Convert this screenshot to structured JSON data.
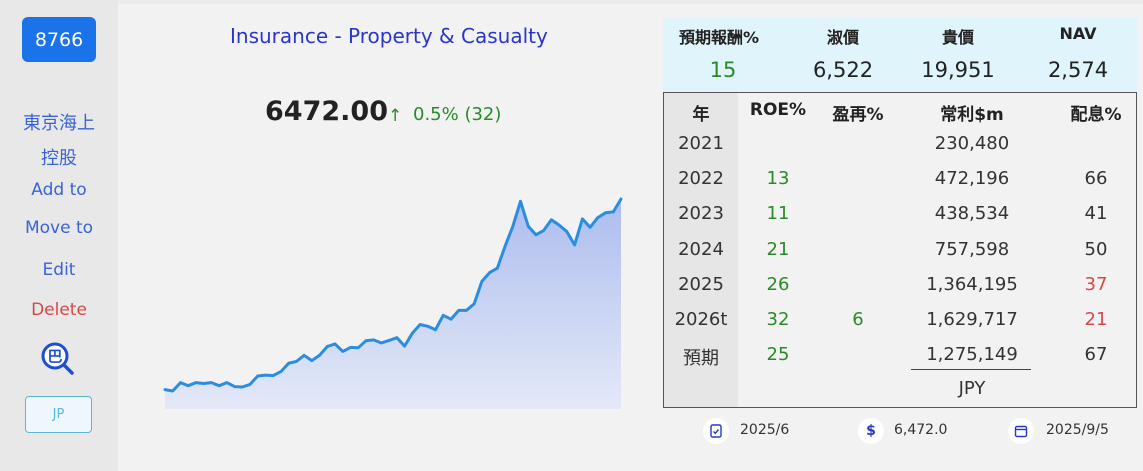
{
  "sidebar": {
    "ticker": "8766",
    "company_line1": "東京海上",
    "company_line2": "控股",
    "add_to": "Add to",
    "move_to": "Move to",
    "edit": "Edit",
    "delete": "Delete",
    "logo_glyph": "巴",
    "market_badge": "JP"
  },
  "quote": {
    "industry": "Insurance - Property & Casualty",
    "price": "6472.00",
    "change_arrow": "↑",
    "change": "0.5% (32)"
  },
  "summary": {
    "headers": [
      "預期報酬%",
      "淑價",
      "貴價",
      "NAV"
    ],
    "values": [
      "15",
      "6,522",
      "19,951",
      "2,574"
    ]
  },
  "table": {
    "headers": [
      "年",
      "ROE%",
      "盈再%",
      "常利$m",
      "配息%"
    ],
    "rows": [
      {
        "year": "2021",
        "roe": "",
        "reinvest": "",
        "profit": "230,480",
        "payout": ""
      },
      {
        "year": "2022",
        "roe": "13",
        "reinvest": "",
        "profit": "472,196",
        "payout": "66"
      },
      {
        "year": "2023",
        "roe": "11",
        "reinvest": "",
        "profit": "438,534",
        "payout": "41"
      },
      {
        "year": "2024",
        "roe": "21",
        "reinvest": "",
        "profit": "757,598",
        "payout": "50"
      },
      {
        "year": "2025",
        "roe": "26",
        "reinvest": "",
        "profit": "1,364,195",
        "payout": "37"
      },
      {
        "year": "2026t",
        "roe": "32",
        "reinvest": "6",
        "profit": "1,629,717",
        "payout": "21"
      },
      {
        "year": "預期",
        "roe": "25",
        "reinvest": "",
        "profit": "1,275,149",
        "payout": "67"
      }
    ],
    "currency": "JPY"
  },
  "footer": {
    "report_date": "2025/6",
    "price": "6,472.0",
    "quote_date": "2025/9/5"
  },
  "colors": {
    "accent": "#1a73e8",
    "line": "#2a8ee0",
    "positive": "#2a8a2a",
    "negative": "#d94848"
  },
  "chart_data": {
    "type": "area",
    "series": [
      {
        "values": [
          2140,
          2110,
          2300,
          2230,
          2300,
          2280,
          2300,
          2230,
          2300,
          2210,
          2200,
          2260,
          2450,
          2470,
          2460,
          2550,
          2740,
          2780,
          2920,
          2800,
          2920,
          3120,
          3180,
          3010,
          3100,
          3090,
          3250,
          3270,
          3200,
          3260,
          3320,
          3130,
          3420,
          3620,
          3580,
          3500,
          3830,
          3740,
          3940,
          3940,
          4090,
          4600,
          4800,
          4900,
          5400,
          5850,
          6420,
          5850,
          5660,
          5760,
          6000,
          5880,
          5730,
          5430,
          6020,
          5830,
          6050,
          6160,
          6180,
          6472
        ]
      }
    ],
    "ylim": [
      1700,
      6700
    ],
    "grid": false
  }
}
